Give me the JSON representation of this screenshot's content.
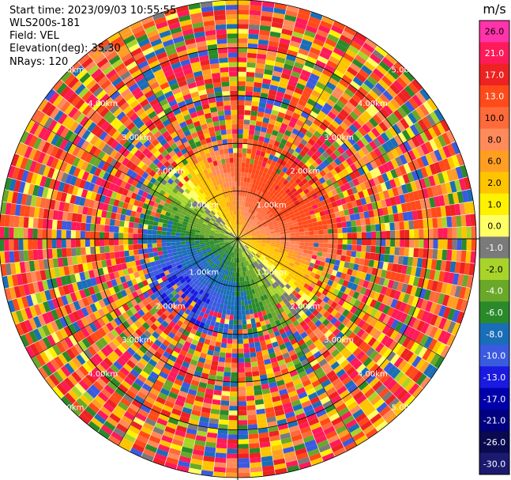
{
  "header": {
    "start_time": "Start time: 2023/09/03 10:55:55",
    "instrument": "WLS200s-181",
    "field": "Field: VEL",
    "elevation": "Elevation(deg): 35.30",
    "nrays": "NRays: 120"
  },
  "chart_data": {
    "type": "heatmap",
    "projection": "polar-ppi",
    "nrays": 120,
    "elevation_deg": 35.3,
    "max_range_km": 5.0,
    "range_rings_km": [
      1.0,
      2.0,
      3.0,
      4.0,
      5.0
    ],
    "range_ring_labels": [
      "1.00km",
      "2.00km",
      "3.00km",
      "4.00km",
      "5.00km"
    ],
    "valid_range_km": 2.1,
    "colorbar": {
      "unit": "m/s",
      "ticks": [
        "26.0",
        "21.0",
        "17.0",
        "13.0",
        "10.0",
        "8.0",
        "6.0",
        "2.0",
        "1.0",
        "0.0",
        "-1.0",
        "-2.0",
        "-4.0",
        "-6.0",
        "-8.0",
        "-10.0",
        "-13.0",
        "-17.0",
        "-21.0",
        "-26.0",
        "-30.0"
      ],
      "colors": [
        "#ff33aa",
        "#ff1a5a",
        "#ee2222",
        "#ff4a1a",
        "#ff6a3a",
        "#ff8a5a",
        "#ff9e22",
        "#ffc400",
        "#fff200",
        "#ffff66",
        "#7a7a7a",
        "#a8d42a",
        "#6aa82a",
        "#2a8a2a",
        "#1a6eb8",
        "#3a5ae0",
        "#1a1ae0",
        "#0000aa",
        "#000080",
        "#0a0a50",
        "#1a1a70"
      ]
    },
    "wind_pattern": {
      "toward_direction": "north-east",
      "max_positive_ms": 17.0,
      "max_negative_ms": -10.0
    }
  }
}
